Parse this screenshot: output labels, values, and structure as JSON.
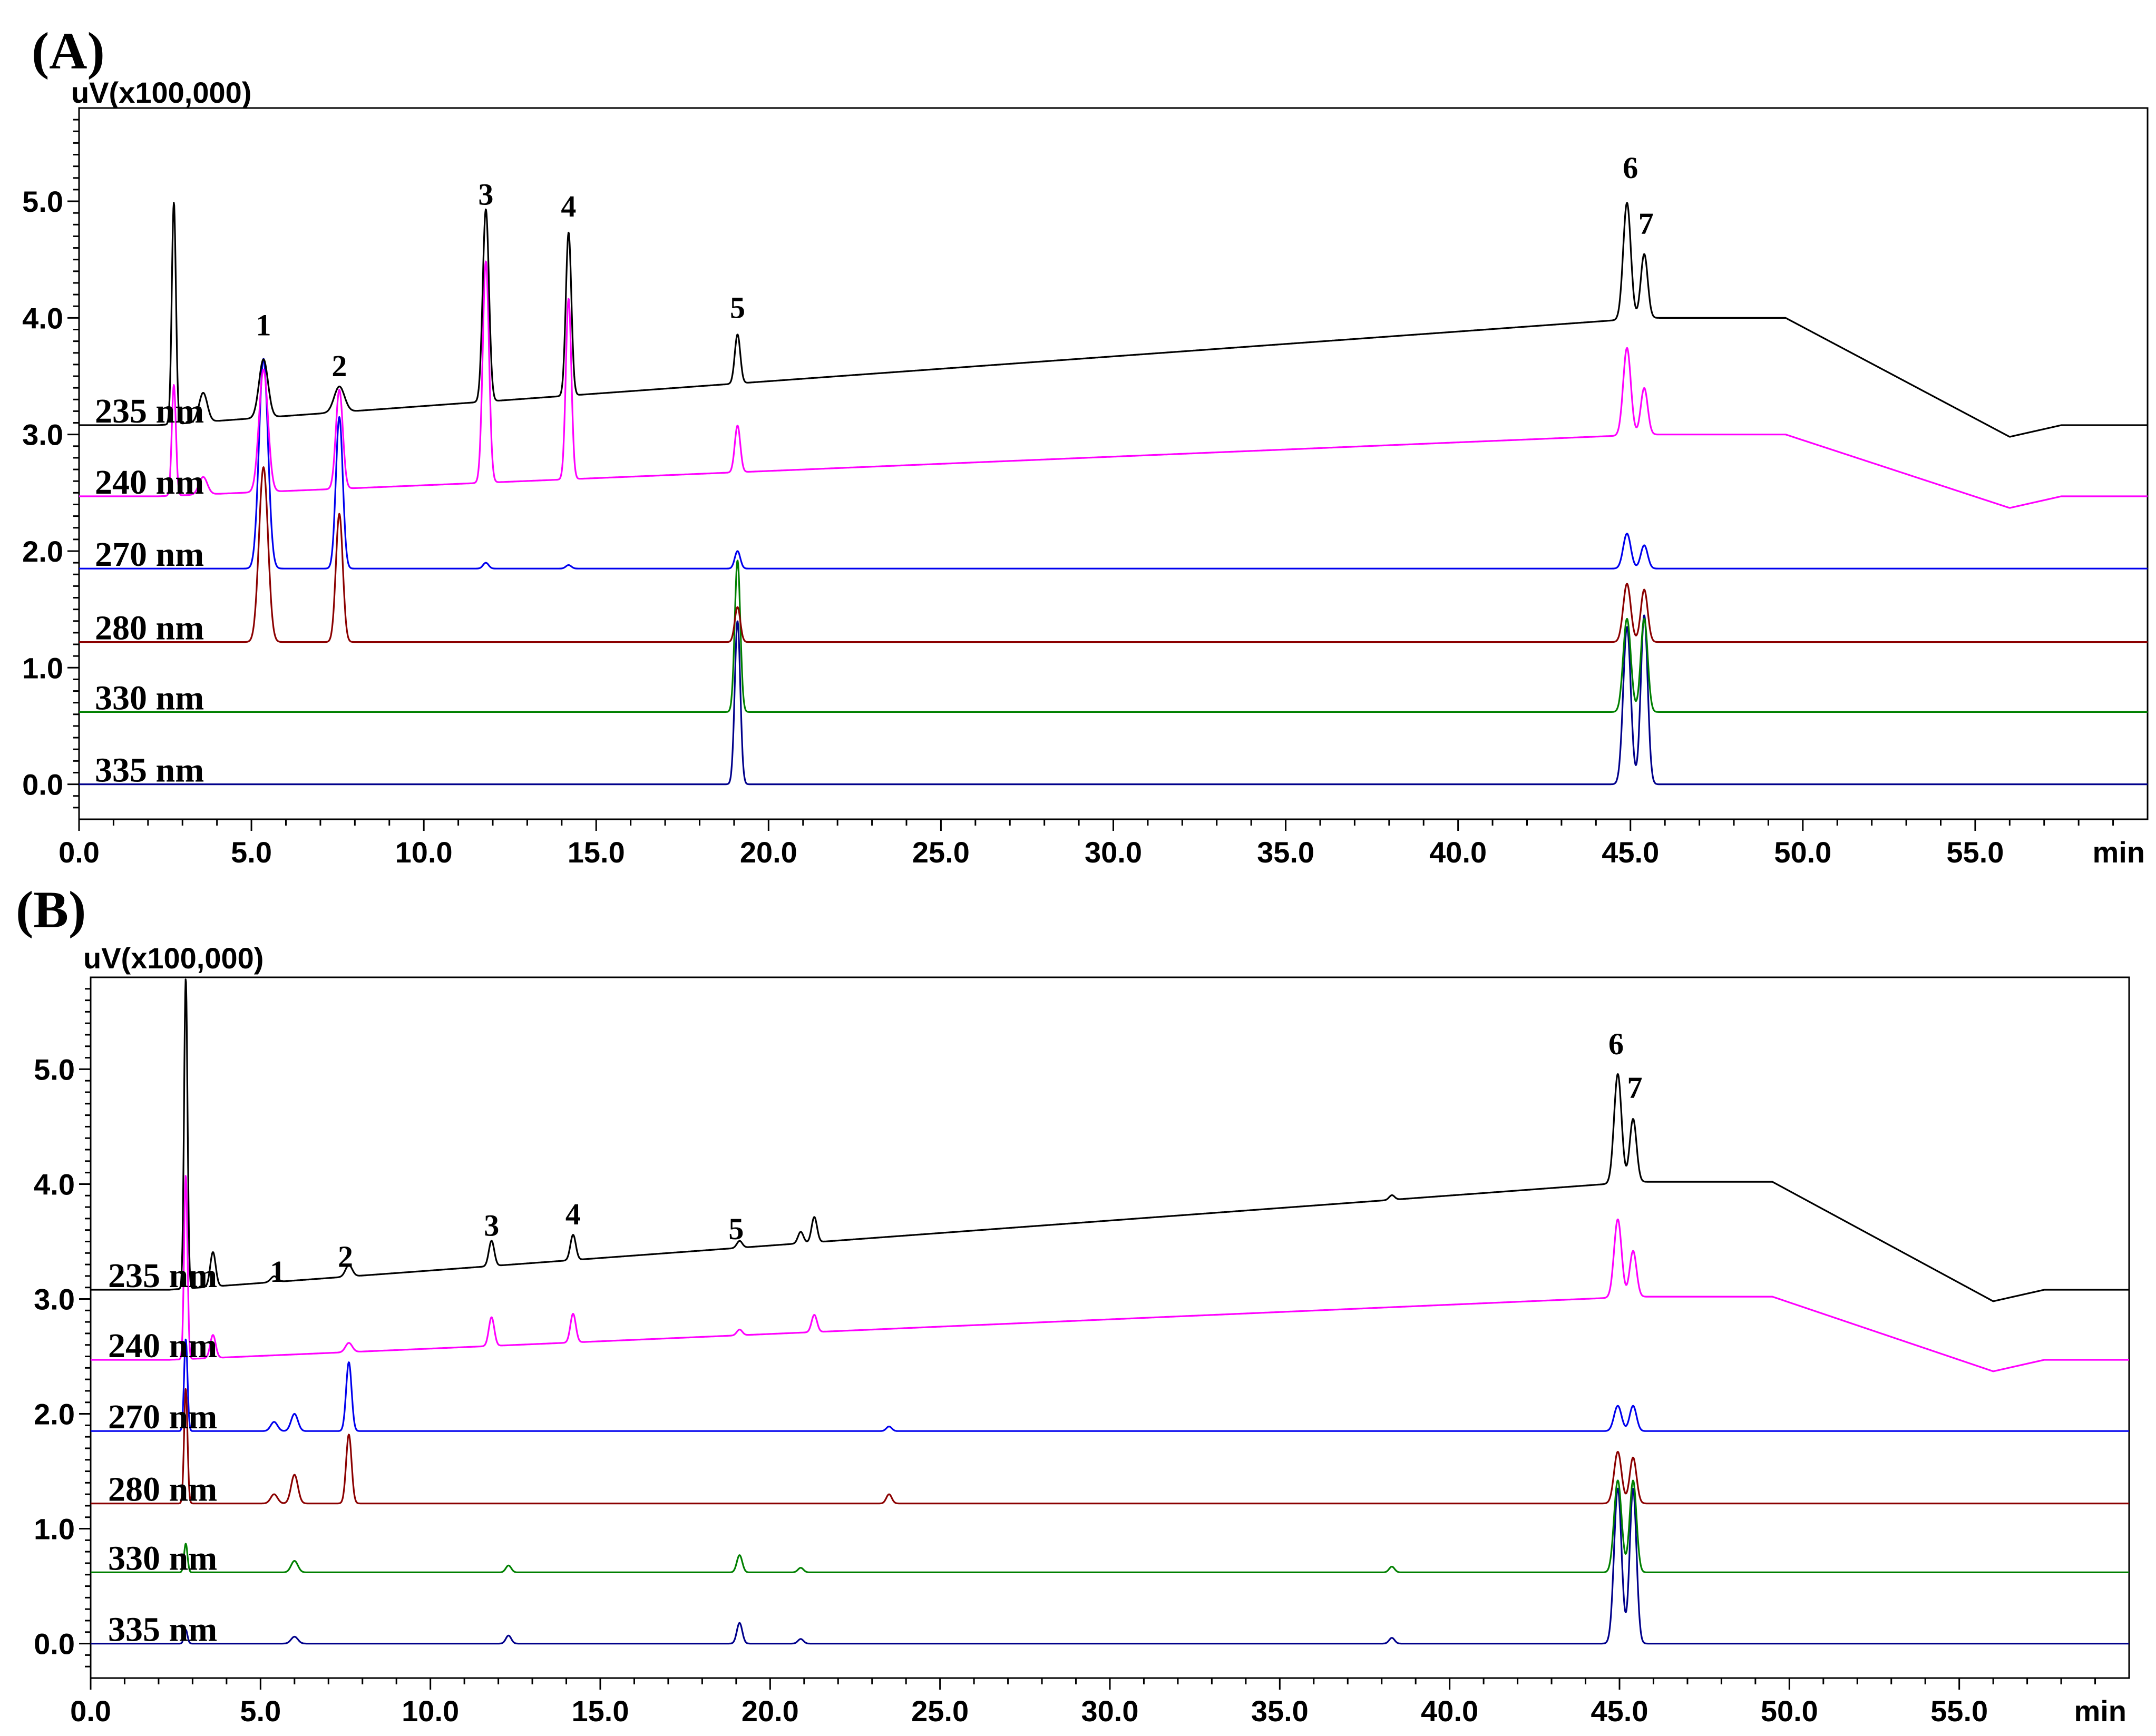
{
  "colors": {
    "235 nm": "#000000",
    "240 nm": "#ff00ff",
    "270 nm": "#0000ee",
    "280 nm": "#8b0000",
    "330 nm": "#008000",
    "335 nm": "#00008b"
  },
  "chart_data": [
    {
      "type": "line",
      "panel": "(A)",
      "ylabel": "uV(x100,000)",
      "xlabel": "min",
      "xlim": [
        0,
        60
      ],
      "ylim": [
        -0.3,
        5.8
      ],
      "xticks": [
        "0.0",
        "5.0",
        "10.0",
        "15.0",
        "20.0",
        "25.0",
        "30.0",
        "35.0",
        "40.0",
        "45.0",
        "50.0",
        "55.0"
      ],
      "yticks": [
        "0.0",
        "1.0",
        "2.0",
        "3.0",
        "4.0",
        "5.0"
      ],
      "series": [
        {
          "name": "235 nm",
          "baseline": 3.08,
          "end_level": 4.0,
          "peaks": [
            [
              2.75,
              1.9,
              0.06
            ],
            [
              3.6,
              0.25,
              0.12
            ],
            [
              5.35,
              0.5,
              0.13
            ],
            [
              7.55,
              0.22,
              0.15
            ],
            [
              11.8,
              1.65,
              0.09
            ],
            [
              14.2,
              1.4,
              0.08
            ],
            [
              19.1,
              0.42,
              0.08
            ],
            [
              44.9,
              1.0,
              0.11
            ],
            [
              45.4,
              0.55,
              0.1
            ]
          ]
        },
        {
          "name": "240 nm",
          "baseline": 2.47,
          "end_level": 3.0,
          "peaks": [
            [
              2.75,
              0.95,
              0.06
            ],
            [
              3.6,
              0.15,
              0.12
            ],
            [
              5.35,
              1.05,
              0.13
            ],
            [
              7.55,
              0.85,
              0.1
            ],
            [
              11.8,
              1.9,
              0.09
            ],
            [
              14.2,
              1.55,
              0.08
            ],
            [
              19.1,
              0.4,
              0.08
            ],
            [
              44.9,
              0.75,
              0.11
            ],
            [
              45.4,
              0.4,
              0.1
            ]
          ]
        },
        {
          "name": "270 nm",
          "baseline": 1.85,
          "end_level": 1.85,
          "peaks": [
            [
              5.35,
              1.8,
              0.13
            ],
            [
              7.55,
              1.3,
              0.1
            ],
            [
              11.8,
              0.05,
              0.08
            ],
            [
              14.2,
              0.03,
              0.08
            ],
            [
              19.1,
              0.15,
              0.08
            ],
            [
              44.9,
              0.3,
              0.11
            ],
            [
              45.4,
              0.2,
              0.1
            ]
          ]
        },
        {
          "name": "280 nm",
          "baseline": 1.22,
          "end_level": 1.22,
          "peaks": [
            [
              5.35,
              1.5,
              0.13
            ],
            [
              7.55,
              1.1,
              0.1
            ],
            [
              19.1,
              0.3,
              0.08
            ],
            [
              44.9,
              0.5,
              0.11
            ],
            [
              45.4,
              0.45,
              0.1
            ]
          ]
        },
        {
          "name": "330 nm",
          "baseline": 0.62,
          "end_level": 0.62,
          "peaks": [
            [
              19.1,
              1.3,
              0.08
            ],
            [
              44.9,
              0.8,
              0.11
            ],
            [
              45.4,
              0.8,
              0.1
            ]
          ]
        },
        {
          "name": "335 nm",
          "baseline": 0.0,
          "end_level": 0.0,
          "peaks": [
            [
              19.1,
              1.4,
              0.08
            ],
            [
              44.9,
              1.35,
              0.11
            ],
            [
              45.4,
              1.45,
              0.1
            ]
          ]
        }
      ],
      "annotations": [
        {
          "text": "1",
          "x": 5.35,
          "y": 3.85
        },
        {
          "text": "2",
          "x": 7.55,
          "y": 3.5
        },
        {
          "text": "3",
          "x": 11.8,
          "y": 4.97
        },
        {
          "text": "4",
          "x": 14.2,
          "y": 4.87
        },
        {
          "text": "5",
          "x": 19.1,
          "y": 4.0
        },
        {
          "text": "6",
          "x": 45.0,
          "y": 5.2
        },
        {
          "text": "7",
          "x": 45.45,
          "y": 4.72
        }
      ]
    },
    {
      "type": "line",
      "panel": "(B)",
      "ylabel": "uV(x100,000)",
      "xlabel": "min",
      "xlim": [
        0,
        60
      ],
      "ylim": [
        -0.3,
        5.8
      ],
      "xticks": [
        "0.0",
        "5.0",
        "10.0",
        "15.0",
        "20.0",
        "25.0",
        "30.0",
        "35.0",
        "40.0",
        "45.0",
        "50.0",
        "55.0"
      ],
      "yticks": [
        "0.0",
        "1.0",
        "2.0",
        "3.0",
        "4.0",
        "5.0"
      ],
      "series": [
        {
          "name": "235 nm",
          "baseline": 3.08,
          "end_level": 4.02,
          "peaks": [
            [
              2.8,
              2.7,
              0.05
            ],
            [
              3.6,
              0.3,
              0.08
            ],
            [
              5.4,
              0.05,
              0.1
            ],
            [
              7.6,
              0.1,
              0.1
            ],
            [
              11.8,
              0.22,
              0.08
            ],
            [
              14.2,
              0.22,
              0.08
            ],
            [
              19.1,
              0.06,
              0.08
            ],
            [
              20.9,
              0.1,
              0.08
            ],
            [
              21.3,
              0.22,
              0.08
            ],
            [
              38.3,
              0.04,
              0.08
            ],
            [
              44.95,
              0.95,
              0.11
            ],
            [
              45.4,
              0.55,
              0.1
            ]
          ]
        },
        {
          "name": "240 nm",
          "baseline": 2.47,
          "end_level": 3.02,
          "peaks": [
            [
              2.8,
              1.6,
              0.05
            ],
            [
              3.6,
              0.2,
              0.08
            ],
            [
              7.6,
              0.08,
              0.1
            ],
            [
              11.8,
              0.25,
              0.08
            ],
            [
              14.2,
              0.25,
              0.08
            ],
            [
              19.1,
              0.05,
              0.08
            ],
            [
              21.3,
              0.15,
              0.08
            ],
            [
              44.95,
              0.68,
              0.11
            ],
            [
              45.4,
              0.4,
              0.1
            ]
          ]
        },
        {
          "name": "270 nm",
          "baseline": 1.85,
          "end_level": 1.85,
          "peaks": [
            [
              2.8,
              0.8,
              0.05
            ],
            [
              5.4,
              0.08,
              0.1
            ],
            [
              6.0,
              0.15,
              0.1
            ],
            [
              7.6,
              0.6,
              0.08
            ],
            [
              23.5,
              0.04,
              0.08
            ],
            [
              44.95,
              0.22,
              0.11
            ],
            [
              45.4,
              0.22,
              0.1
            ]
          ]
        },
        {
          "name": "280 nm",
          "baseline": 1.22,
          "end_level": 1.22,
          "peaks": [
            [
              2.8,
              1.0,
              0.05
            ],
            [
              5.4,
              0.08,
              0.1
            ],
            [
              6.0,
              0.25,
              0.1
            ],
            [
              7.6,
              0.6,
              0.08
            ],
            [
              23.5,
              0.08,
              0.08
            ],
            [
              44.95,
              0.45,
              0.11
            ],
            [
              45.4,
              0.4,
              0.1
            ]
          ]
        },
        {
          "name": "330 nm",
          "baseline": 0.62,
          "end_level": 0.62,
          "peaks": [
            [
              2.8,
              0.25,
              0.05
            ],
            [
              6.0,
              0.1,
              0.1
            ],
            [
              12.3,
              0.06,
              0.08
            ],
            [
              19.1,
              0.15,
              0.08
            ],
            [
              20.9,
              0.04,
              0.08
            ],
            [
              38.3,
              0.05,
              0.08
            ],
            [
              44.95,
              0.8,
              0.11
            ],
            [
              45.4,
              0.8,
              0.1
            ]
          ]
        },
        {
          "name": "335 nm",
          "baseline": 0.0,
          "end_level": 0.0,
          "peaks": [
            [
              2.8,
              0.12,
              0.05
            ],
            [
              6.0,
              0.06,
              0.1
            ],
            [
              12.3,
              0.07,
              0.08
            ],
            [
              19.1,
              0.18,
              0.08
            ],
            [
              20.9,
              0.04,
              0.08
            ],
            [
              38.3,
              0.05,
              0.08
            ],
            [
              44.95,
              1.35,
              0.11
            ],
            [
              45.4,
              1.35,
              0.1
            ]
          ]
        }
      ],
      "annotations": [
        {
          "text": "1",
          "x": 5.5,
          "y": 3.15
        },
        {
          "text": "2",
          "x": 7.5,
          "y": 3.28
        },
        {
          "text": "3",
          "x": 11.8,
          "y": 3.55
        },
        {
          "text": "4",
          "x": 14.2,
          "y": 3.65
        },
        {
          "text": "5",
          "x": 19.0,
          "y": 3.52
        },
        {
          "text": "6",
          "x": 44.9,
          "y": 5.13
        },
        {
          "text": "7",
          "x": 45.45,
          "y": 4.75
        }
      ]
    }
  ]
}
